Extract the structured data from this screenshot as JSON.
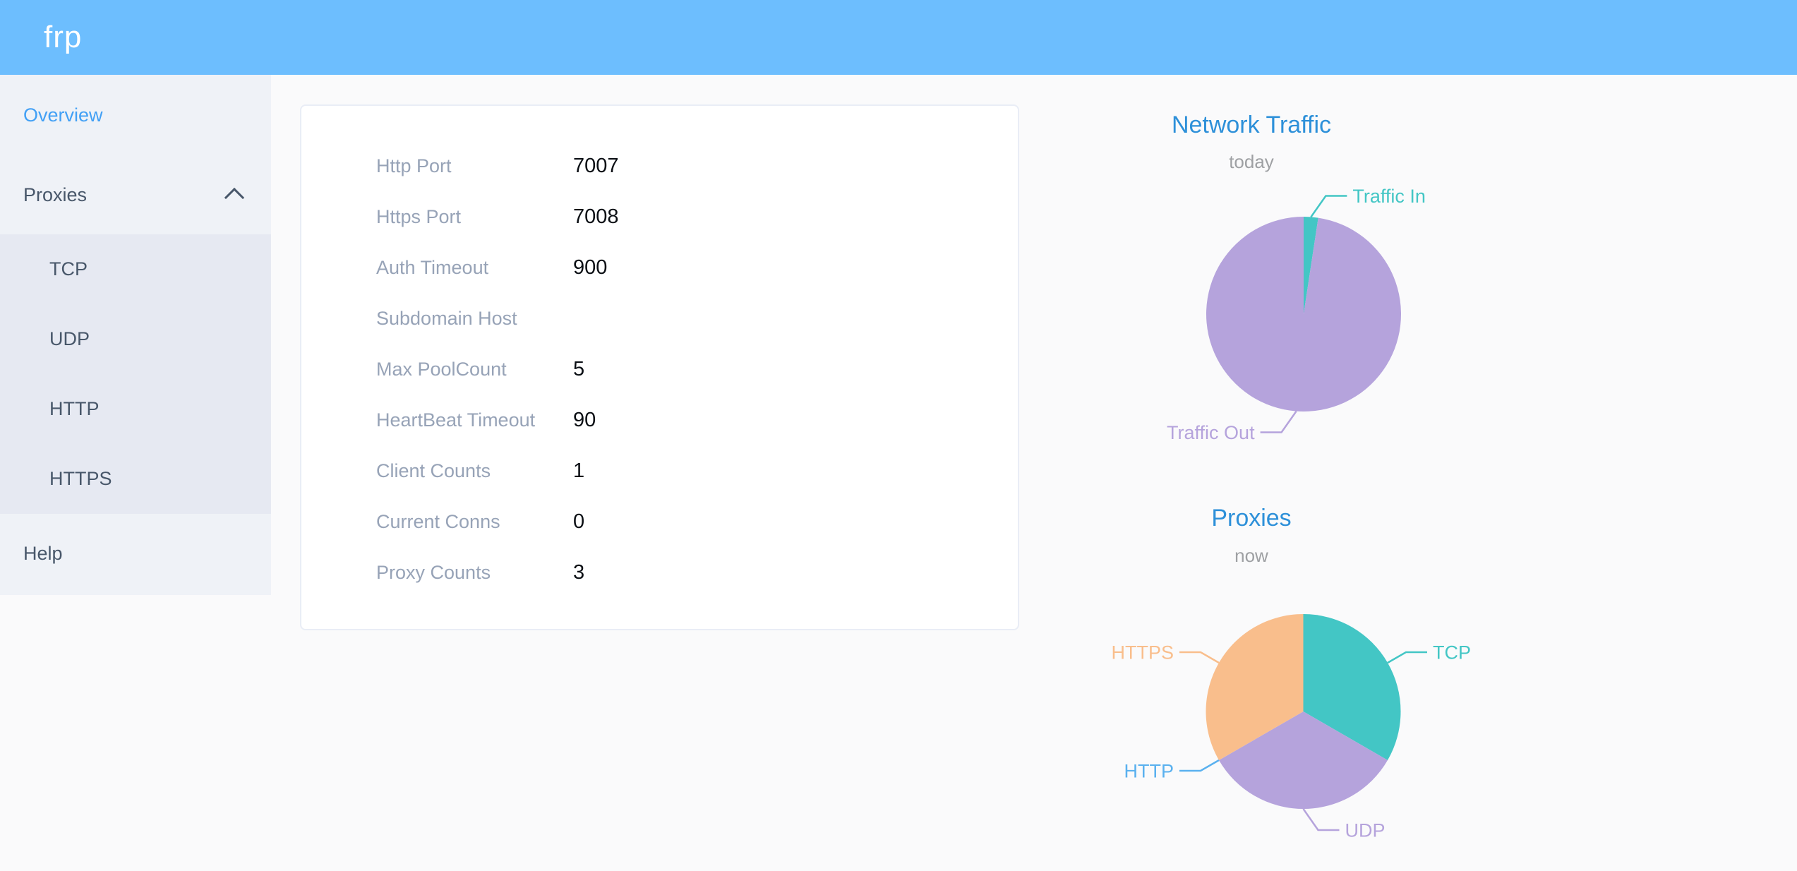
{
  "header": {
    "logo": "frp"
  },
  "sidebar": {
    "active_item": "Overview",
    "items": {
      "overview": "Overview",
      "proxies": "Proxies",
      "help": "Help"
    },
    "proxies_expanded": true,
    "proxies_submenu": [
      "TCP",
      "UDP",
      "HTTP",
      "HTTPS"
    ]
  },
  "server_info_card": {
    "rows": [
      {
        "label": "Http Port",
        "value": "7007"
      },
      {
        "label": "Https Port",
        "value": "7008"
      },
      {
        "label": "Auth Timeout",
        "value": "900"
      },
      {
        "label": "Subdomain Host",
        "value": ""
      },
      {
        "label": "Max PoolCount",
        "value": "5"
      },
      {
        "label": "HeartBeat Timeout",
        "value": "90"
      },
      {
        "label": "Client Counts",
        "value": "1"
      },
      {
        "label": "Current Conns",
        "value": "0"
      },
      {
        "label": "Proxy Counts",
        "value": "3"
      }
    ]
  },
  "chart_data": [
    {
      "type": "pie",
      "title": "Network Traffic",
      "subtitle": "today",
      "start_angle_deg": 90,
      "clockwise": true,
      "label_position": "outside-callout",
      "values_unit": "percent_of_total_estimated_from_arc",
      "series": [
        {
          "name": "Traffic In",
          "value": 2.4,
          "color": "#43C6C5"
        },
        {
          "name": "Traffic Out",
          "value": 97.6,
          "color": "#B5A3DC"
        }
      ]
    },
    {
      "type": "pie",
      "title": "Proxies",
      "subtitle": "now",
      "start_angle_deg": 90,
      "clockwise": true,
      "label_position": "outside-callout",
      "values_unit": "proxy_count",
      "series": [
        {
          "name": "TCP",
          "value": 1,
          "color": "#43C6C5"
        },
        {
          "name": "UDP",
          "value": 1,
          "color": "#B5A3DC"
        },
        {
          "name": "HTTP",
          "value": 0,
          "color": "#5AB1EF"
        },
        {
          "name": "HTTPS",
          "value": 1,
          "color": "#F9BE8C"
        }
      ]
    }
  ],
  "theme": {
    "header_bg": "#6DBEFE",
    "sidebar_bg": "#EFF2F7",
    "submenu_bg": "#E6E9F2",
    "menu_text": "#48576A",
    "menu_active_text": "#42A0F5",
    "chart_title_color": "#2D90D9",
    "chart_subtitle_color": "#9EA0A3",
    "card_label_color": "#97A3B7",
    "card_value_color": "#0B0F14",
    "page_bg": "#FAFAFB",
    "card_bg": "#FFFFFF",
    "card_border": "#E9EDF6"
  }
}
